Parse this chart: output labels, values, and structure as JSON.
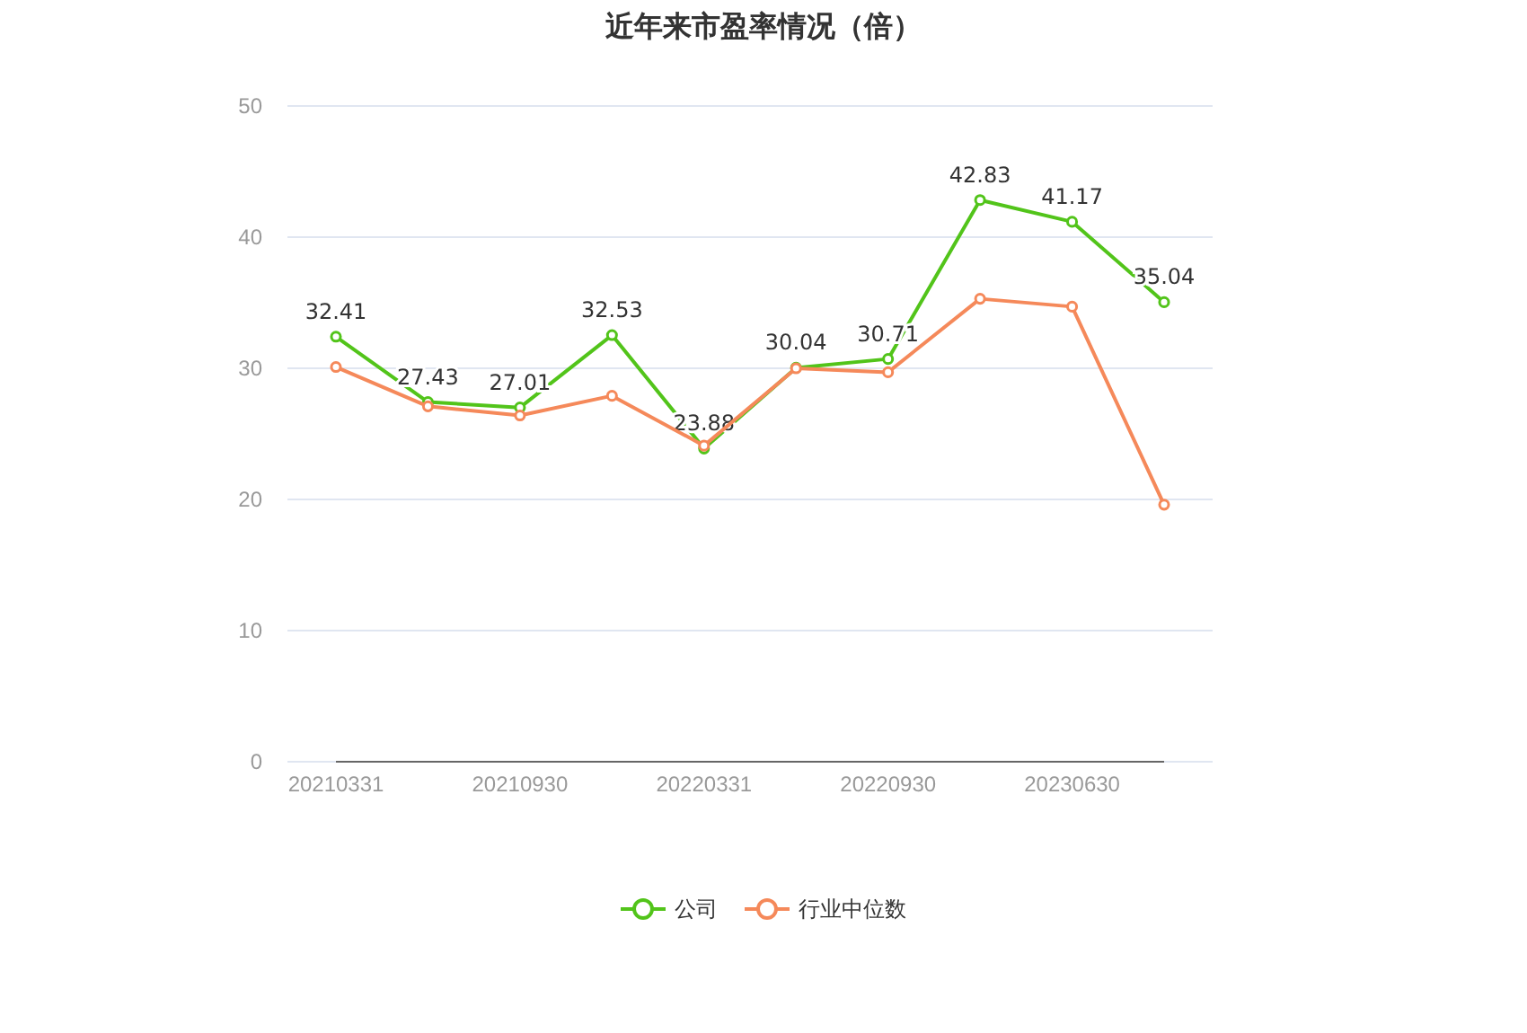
{
  "chart_data": {
    "type": "line",
    "title": "近年来市盈率情况（倍）",
    "categories": [
      "20210331",
      null,
      "20210930",
      null,
      "20220331",
      null,
      "20220930",
      null,
      "20230630",
      null
    ],
    "series": [
      {
        "name": "公司",
        "color": "#52c41a",
        "values": [
          32.41,
          27.43,
          27.01,
          32.53,
          23.88,
          30.04,
          30.71,
          42.83,
          41.17,
          35.04
        ],
        "value_labels": [
          "32.41",
          "27.43",
          "27.01",
          "32.53",
          "23.88",
          "30.04",
          "30.71",
          "42.83",
          "41.17",
          "35.04"
        ]
      },
      {
        "name": "行业中位数",
        "color": "#f5895a",
        "values": [
          30.1,
          27.1,
          26.4,
          27.9,
          24.1,
          30.0,
          29.7,
          35.3,
          34.7,
          19.6
        ]
      }
    ],
    "ylim": [
      0,
      50
    ],
    "yticks": [
      0,
      10,
      20,
      30,
      40,
      50
    ],
    "grid": "y",
    "legend": "bottom",
    "marker": "circle",
    "line_style": "solid"
  }
}
